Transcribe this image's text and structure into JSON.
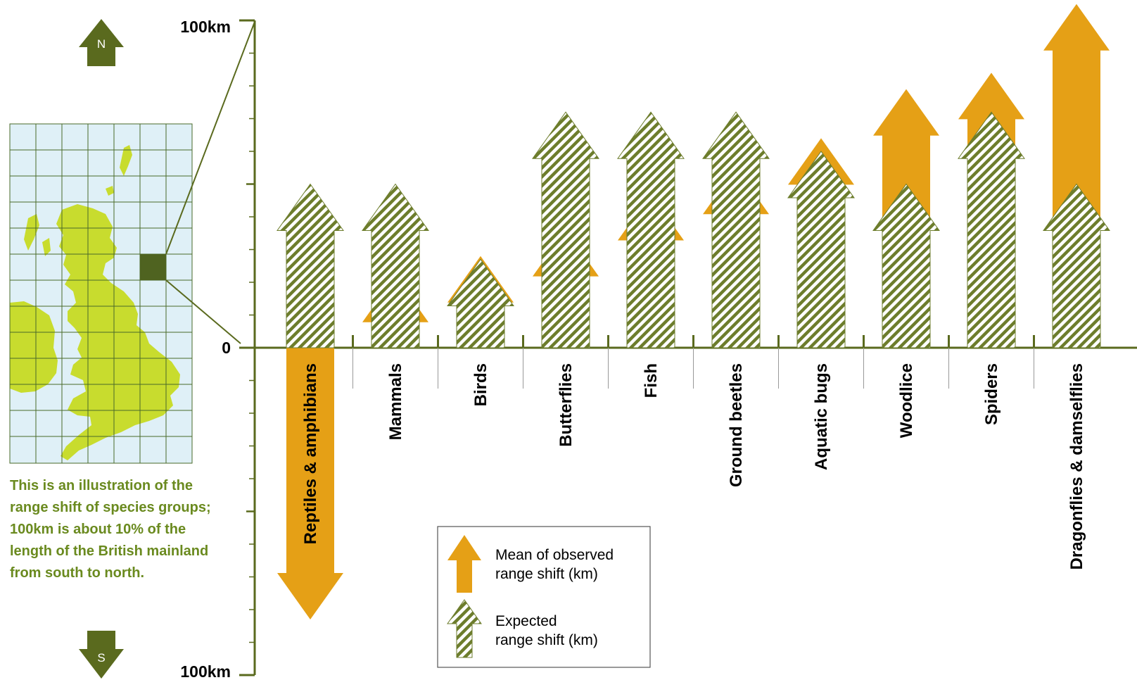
{
  "colors": {
    "axis": "#5a6a1e",
    "observed": "#e5a016",
    "expected_stripe": "#6d7d2c",
    "map_land": "#c8dc2e",
    "map_sea": "#dff0f7",
    "map_grid": "#4a6a2a",
    "note_text": "#6a8a1f"
  },
  "compass": {
    "north": "N",
    "south": "S"
  },
  "note": "This is an illustration of the range shift of species groups; 100km is about 10% of the length of the British mainland from south to north.",
  "chart_data": {
    "type": "bar",
    "axis": {
      "ylim": [
        -100,
        100
      ],
      "unit": "km",
      "top_label": "100km",
      "zero_label": "0",
      "bottom_label": "100km",
      "minor_ticks_every": 10,
      "major_ticks_every": 50
    },
    "categories": [
      "Reptiles & amphibians",
      "Mammals",
      "Birds",
      "Butterflies",
      "Fish",
      "Ground beetles",
      "Aquatic bugs",
      "Woodlice",
      "Spiders",
      "Dragonflies & damselflies"
    ],
    "series": [
      {
        "name": "Mean of observed range shift (km)",
        "values": [
          -83,
          22,
          28,
          36,
          47,
          55,
          64,
          79,
          84,
          105
        ]
      },
      {
        "name": "Expected range shift (km)",
        "values": [
          50,
          50,
          27,
          72,
          72,
          72,
          60,
          50,
          72,
          50
        ]
      }
    ],
    "legend": {
      "position": "bottom-center",
      "observed_label_1": "Mean of observed",
      "observed_label_2": "range shift (km)",
      "expected_label_1": "Expected",
      "expected_label_2": "range shift (km)"
    }
  }
}
